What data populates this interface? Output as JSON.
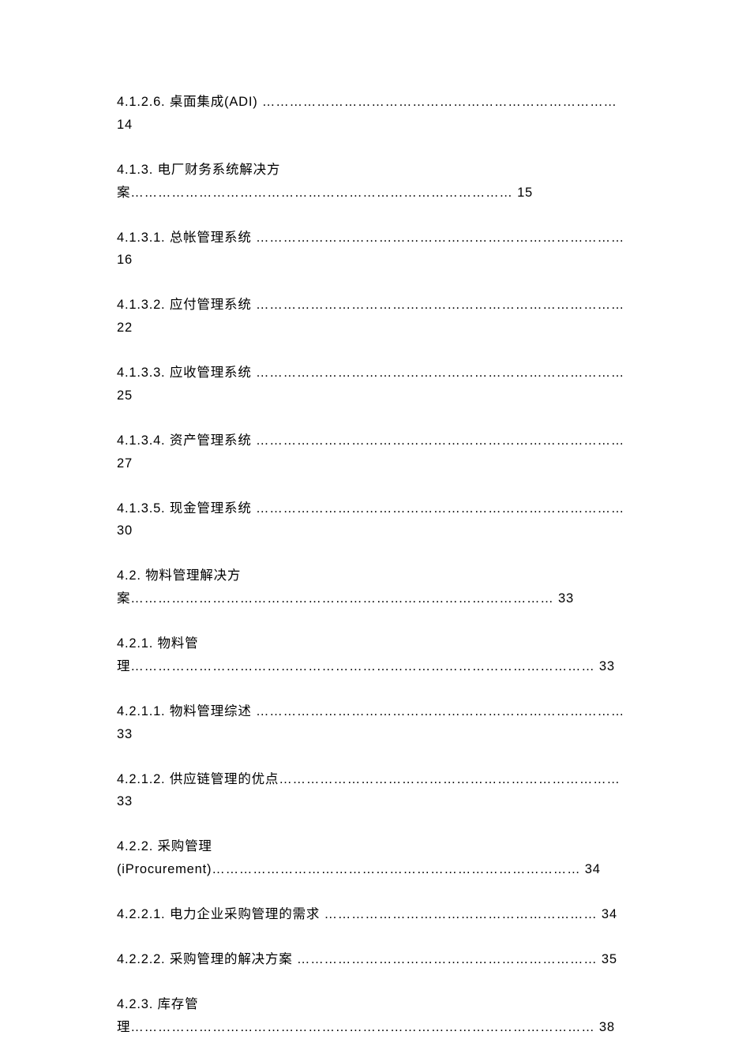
{
  "toc": {
    "entries": [
      {
        "number": "4.1.2.6.",
        "title": "桌面集成(ADI)",
        "page": "14",
        "dots1": "……………………………………………………………………",
        "lineBreak": true
      },
      {
        "number": "4.1.3.",
        "title": "电厂财务系统解决方",
        "titleWrap": "案",
        "page": "15",
        "dots1": "…………………………………………………………………………",
        "lineBreak": true,
        "titleSplit": true
      },
      {
        "number": "4.1.3.1.",
        "title": "总帐管理系统",
        "page": "16",
        "dots1": "………………………………………………………………………",
        "lineBreak": true
      },
      {
        "number": "4.1.3.2.",
        "title": "应付管理系统",
        "page": "22",
        "dots1": "………………………………………………………………………",
        "lineBreak": true
      },
      {
        "number": "4.1.3.3.",
        "title": "应收管理系统",
        "page": "25",
        "dots1": "………………………………………………………………………",
        "lineBreak": true
      },
      {
        "number": "4.1.3.4.",
        "title": "资产管理系统",
        "page": "27",
        "dots1": "………………………………………………………………………",
        "lineBreak": true
      },
      {
        "number": "4.1.3.5.",
        "title": "现金管理系统",
        "page": "30",
        "dots1": "………………………………………………………………………",
        "lineBreak": true
      },
      {
        "number": "4.2.",
        "title": "物料管理解决方",
        "titleWrap": "案",
        "page": "33",
        "dots1": "…………………………………………………………………………………",
        "lineBreak": true,
        "titleSplit": true
      },
      {
        "number": "4.2.1.",
        "title": "物料管",
        "titleWrap": "理",
        "page": "33",
        "dots1": "…………………………………………………………………………………………",
        "lineBreak": true,
        "titleSplit": true
      },
      {
        "number": "4.2.1.1.",
        "title": "物料管理综述",
        "page": "33",
        "dots1": "………………………………………………………………………",
        "lineBreak": true
      },
      {
        "number": "4.2.1.2.",
        "title": "供应链管理的优点",
        "page": "33",
        "dots1": "…………………………………………………………………",
        "lineBreak": false
      },
      {
        "number": "4.2.2.",
        "title": "采购管理",
        "titleWrap": "(iProcurement)",
        "page": "34",
        "dots1": "………………………………………………………………………",
        "lineBreak": true,
        "titleSplit": true
      },
      {
        "number": "4.2.2.1.",
        "title": "电力企业采购管理的需求",
        "page": "34",
        "dots1": " ……………………………………………………",
        "lineBreak": false
      },
      {
        "number": "4.2.2.2.",
        "title": "采购管理的解决方案",
        "page": "35",
        "dots1": " …………………………………………………………",
        "lineBreak": false
      },
      {
        "number": "4.2.3.",
        "title": "库存管",
        "titleWrap": "理",
        "page": "38",
        "dots1": "…………………………………………………………………………………………",
        "lineBreak": true,
        "titleSplit": true
      }
    ]
  }
}
